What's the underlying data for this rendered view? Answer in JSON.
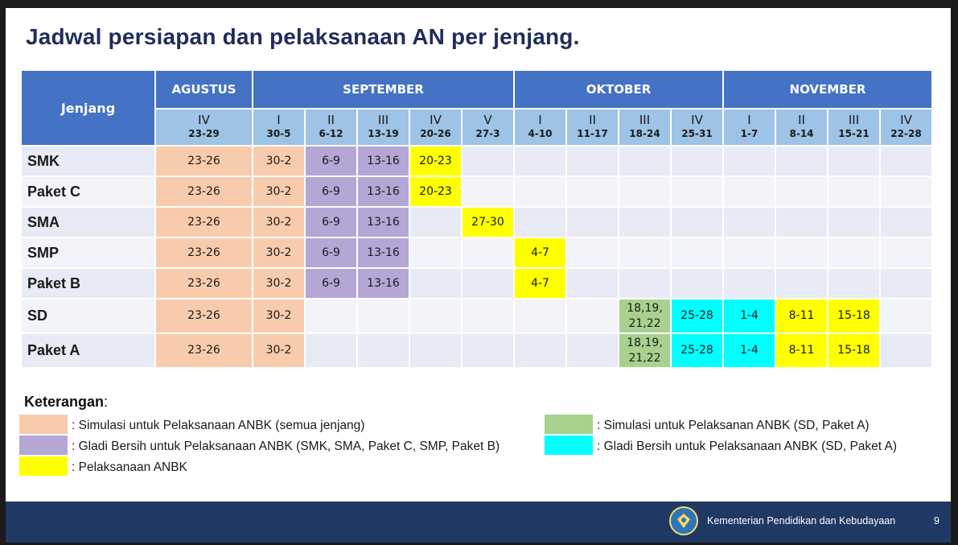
{
  "title": "Jadwal persiapan dan pelaksanaan AN per jenjang.",
  "table": {
    "jenjang_header": "Jenjang",
    "months": [
      {
        "label": "AGUSTUS",
        "span": 1
      },
      {
        "label": "SEPTEMBER",
        "span": 5
      },
      {
        "label": "OKTOBER",
        "span": 4
      },
      {
        "label": "NOVEMBER",
        "span": 4
      }
    ],
    "weeks": [
      {
        "roman": "IV",
        "range": "23-29"
      },
      {
        "roman": "I",
        "range": "30-5"
      },
      {
        "roman": "II",
        "range": "6-12"
      },
      {
        "roman": "III",
        "range": "13-19"
      },
      {
        "roman": "IV",
        "range": "20-26"
      },
      {
        "roman": "V",
        "range": "27-3"
      },
      {
        "roman": "I",
        "range": "4-10"
      },
      {
        "roman": "II",
        "range": "11-17"
      },
      {
        "roman": "III",
        "range": "18-24"
      },
      {
        "roman": "IV",
        "range": "25-31"
      },
      {
        "roman": "I",
        "range": "1-7"
      },
      {
        "roman": "II",
        "range": "8-14"
      },
      {
        "roman": "III",
        "range": "15-21"
      },
      {
        "roman": "IV",
        "range": "22-28"
      }
    ],
    "rows": [
      {
        "label": "SMK",
        "cells": [
          {
            "text": "23-26",
            "color": "salmon"
          },
          {
            "text": "30-2",
            "color": "salmon"
          },
          {
            "text": "6-9",
            "color": "purple"
          },
          {
            "text": "13-16",
            "color": "purple"
          },
          {
            "text": "20-23",
            "color": "yellow"
          },
          {
            "text": ""
          },
          {
            "text": ""
          },
          {
            "text": ""
          },
          {
            "text": ""
          },
          {
            "text": ""
          },
          {
            "text": ""
          },
          {
            "text": ""
          },
          {
            "text": ""
          },
          {
            "text": ""
          }
        ]
      },
      {
        "label": "Paket C",
        "cells": [
          {
            "text": "23-26",
            "color": "salmon"
          },
          {
            "text": "30-2",
            "color": "salmon"
          },
          {
            "text": "6-9",
            "color": "purple"
          },
          {
            "text": "13-16",
            "color": "purple"
          },
          {
            "text": "20-23",
            "color": "yellow"
          },
          {
            "text": ""
          },
          {
            "text": ""
          },
          {
            "text": ""
          },
          {
            "text": ""
          },
          {
            "text": ""
          },
          {
            "text": ""
          },
          {
            "text": ""
          },
          {
            "text": ""
          },
          {
            "text": ""
          }
        ]
      },
      {
        "label": "SMA",
        "cells": [
          {
            "text": "23-26",
            "color": "salmon"
          },
          {
            "text": "30-2",
            "color": "salmon"
          },
          {
            "text": "6-9",
            "color": "purple"
          },
          {
            "text": "13-16",
            "color": "purple"
          },
          {
            "text": ""
          },
          {
            "text": "27-30",
            "color": "yellow"
          },
          {
            "text": ""
          },
          {
            "text": ""
          },
          {
            "text": ""
          },
          {
            "text": ""
          },
          {
            "text": ""
          },
          {
            "text": ""
          },
          {
            "text": ""
          },
          {
            "text": ""
          }
        ]
      },
      {
        "label": "SMP",
        "cells": [
          {
            "text": "23-26",
            "color": "salmon"
          },
          {
            "text": "30-2",
            "color": "salmon"
          },
          {
            "text": "6-9",
            "color": "purple"
          },
          {
            "text": "13-16",
            "color": "purple"
          },
          {
            "text": ""
          },
          {
            "text": ""
          },
          {
            "text": "4-7",
            "color": "yellow"
          },
          {
            "text": ""
          },
          {
            "text": ""
          },
          {
            "text": ""
          },
          {
            "text": ""
          },
          {
            "text": ""
          },
          {
            "text": ""
          },
          {
            "text": ""
          }
        ]
      },
      {
        "label": "Paket B",
        "cells": [
          {
            "text": "23-26",
            "color": "salmon"
          },
          {
            "text": "30-2",
            "color": "salmon"
          },
          {
            "text": "6-9",
            "color": "purple"
          },
          {
            "text": "13-16",
            "color": "purple"
          },
          {
            "text": ""
          },
          {
            "text": ""
          },
          {
            "text": "4-7",
            "color": "yellow"
          },
          {
            "text": ""
          },
          {
            "text": ""
          },
          {
            "text": ""
          },
          {
            "text": ""
          },
          {
            "text": ""
          },
          {
            "text": ""
          },
          {
            "text": ""
          }
        ]
      },
      {
        "label": "SD",
        "cells": [
          {
            "text": "23-26",
            "color": "salmon"
          },
          {
            "text": "30-2",
            "color": "salmon"
          },
          {
            "text": ""
          },
          {
            "text": ""
          },
          {
            "text": ""
          },
          {
            "text": ""
          },
          {
            "text": ""
          },
          {
            "text": ""
          },
          {
            "text": "18,19,\n21,22",
            "color": "green"
          },
          {
            "text": "25-28",
            "color": "cyan"
          },
          {
            "text": "1-4",
            "color": "cyan"
          },
          {
            "text": "8-11",
            "color": "yellow"
          },
          {
            "text": "15-18",
            "color": "yellow"
          },
          {
            "text": ""
          }
        ]
      },
      {
        "label": "Paket A",
        "cells": [
          {
            "text": "23-26",
            "color": "salmon"
          },
          {
            "text": "30-2",
            "color": "salmon"
          },
          {
            "text": ""
          },
          {
            "text": ""
          },
          {
            "text": ""
          },
          {
            "text": ""
          },
          {
            "text": ""
          },
          {
            "text": ""
          },
          {
            "text": "18,19,\n21,22",
            "color": "green"
          },
          {
            "text": "25-28",
            "color": "cyan"
          },
          {
            "text": "1-4",
            "color": "cyan"
          },
          {
            "text": "8-11",
            "color": "yellow"
          },
          {
            "text": "15-18",
            "color": "yellow"
          },
          {
            "text": ""
          }
        ]
      }
    ]
  },
  "legend": {
    "title": "Keterangan",
    "colon": ":",
    "items": [
      {
        "color": "salmon",
        "text": ": Simulasi untuk Pelaksanaan ANBK (semua jenjang)"
      },
      {
        "color": "purple",
        "text": ": Gladi Bersih untuk Pelaksanaan ANBK (SMK, SMA, Paket C, SMP, Paket B)"
      },
      {
        "color": "yellow",
        "text": ": Pelaksanaan ANBK"
      },
      {
        "color": "green",
        "text": ": Simulasi untuk Pelaksanan ANBK (SD, Paket A)"
      },
      {
        "color": "cyan",
        "text": ": Gladi Bersih untuk Pelaksanaan ANBK (SD, Paket A)"
      }
    ]
  },
  "colors": {
    "salmon": "#f8cbad",
    "purple": "#b4a7d6",
    "yellow": "#ffff00",
    "green": "#a9d18e",
    "cyan": "#00ffff",
    "header_blue": "#4472c4",
    "week_blue": "#9dc3e6",
    "footer_navy": "#1f3864"
  },
  "footer": {
    "logo_icon": "tut-wuri-handayani-logo-icon",
    "org": "Kementerian Pendidikan dan Kebudayaan",
    "page": "9"
  }
}
